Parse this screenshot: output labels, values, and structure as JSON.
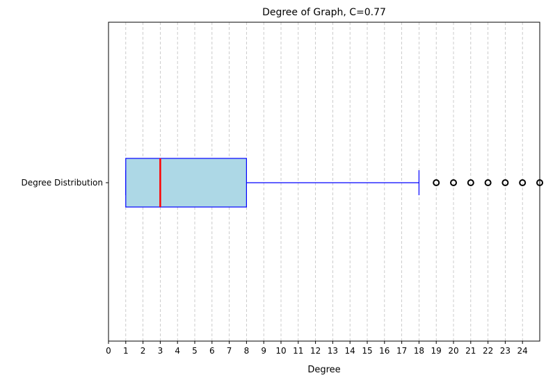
{
  "chart_data": {
    "type": "boxplot",
    "orientation": "horizontal",
    "title": "Degree of Graph, C=0.77",
    "xlabel": "Degree",
    "ylabel": "",
    "category_label": "Degree Distribution",
    "xlim": [
      0,
      25
    ],
    "xticks": [
      0,
      1,
      2,
      3,
      4,
      5,
      6,
      7,
      8,
      9,
      10,
      11,
      12,
      13,
      14,
      15,
      16,
      17,
      18,
      19,
      20,
      21,
      22,
      23,
      24
    ],
    "grid": "x-dashed",
    "box": {
      "whisker_low": 1,
      "q1": 1,
      "median": 3,
      "q3": 8,
      "whisker_high": 18,
      "outliers": [
        19,
        20,
        21,
        22,
        23,
        24,
        25
      ]
    },
    "colors": {
      "box_fill": "#add8e6",
      "box_edge": "#0000ff",
      "median": "#ff0000",
      "whisker": "#0000ff",
      "outlier_edge": "#000000",
      "grid": "#b0b0b0"
    }
  }
}
